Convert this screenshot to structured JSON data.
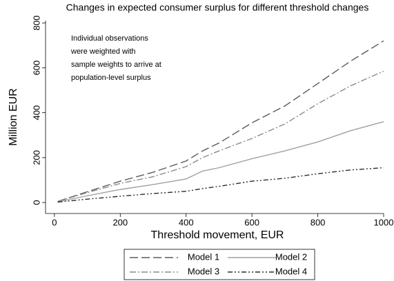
{
  "chart_data": {
    "type": "line",
    "title": "Changes in expected consumer surplus for different threshold changes",
    "x_label": "Threshold movement, EUR",
    "y_label": "Million EUR",
    "annotation": [
      "Individual observations",
      "were weighted with",
      "sample weights to arrive at",
      "population-level surplus"
    ],
    "x": [
      10,
      100,
      200,
      300,
      400,
      450,
      500,
      600,
      700,
      800,
      900,
      1000
    ],
    "series": [
      {
        "name": "Model 1",
        "color": "#5a5a5a",
        "values": [
          5,
          48,
          95,
          135,
          185,
          230,
          265,
          355,
          430,
          530,
          630,
          720
        ]
      },
      {
        "name": "Model 2",
        "color": "#a0a0a0",
        "values": [
          3,
          30,
          58,
          80,
          105,
          140,
          155,
          195,
          230,
          270,
          320,
          360
        ]
      },
      {
        "name": "Model 3",
        "color": "#8a8a8a",
        "values": [
          5,
          44,
          85,
          115,
          160,
          200,
          230,
          285,
          350,
          440,
          520,
          585
        ]
      },
      {
        "name": "Model 4",
        "color": "#2a2a2a",
        "values": [
          2,
          15,
          28,
          40,
          50,
          62,
          72,
          95,
          108,
          128,
          145,
          155
        ]
      }
    ],
    "xlim": [
      -27,
      1000
    ],
    "ylim": [
      -49,
      810
    ],
    "xticks": [
      0,
      200,
      400,
      600,
      800,
      1000
    ],
    "yticks": [
      0,
      200,
      400,
      600,
      800
    ],
    "grid": false
  }
}
